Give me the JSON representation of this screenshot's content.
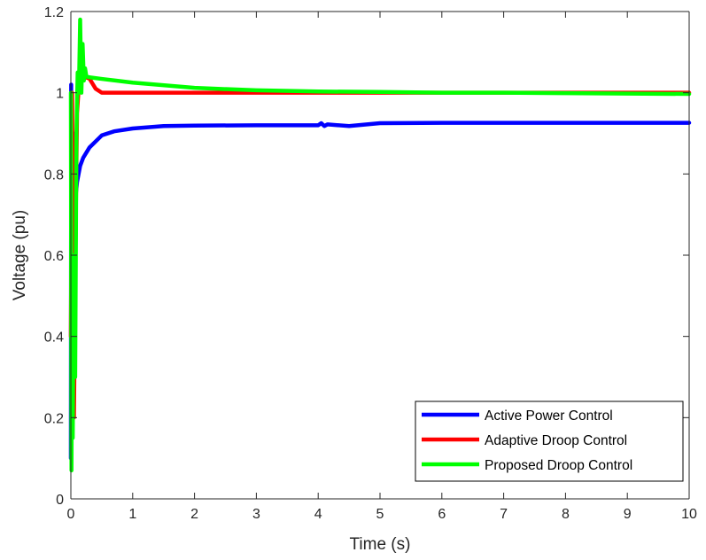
{
  "chart_data": {
    "type": "line",
    "title": "",
    "xlabel": "Time (s)",
    "ylabel": "Voltage (pu)",
    "xlim": [
      0,
      10
    ],
    "ylim": [
      0,
      1.2
    ],
    "xticks": [
      0,
      1,
      2,
      3,
      4,
      5,
      6,
      7,
      8,
      9,
      10
    ],
    "yticks": [
      0,
      0.2,
      0.4,
      0.6,
      0.8,
      1,
      1.2
    ],
    "xtick_labels": [
      "0",
      "1",
      "2",
      "3",
      "4",
      "5",
      "6",
      "7",
      "8",
      "9",
      "10"
    ],
    "ytick_labels": [
      "0",
      "0.2",
      "0.4",
      "0.6",
      "0.8",
      "1",
      "1.2"
    ],
    "grid": false,
    "legend_position": "bottom-right",
    "series": [
      {
        "name": "Active Power Control",
        "color": "#0000ff",
        "x": [
          0,
          0.005,
          0.01,
          0.015,
          0.02,
          0.03,
          0.04,
          0.05,
          0.06,
          0.07,
          0.08,
          0.1,
          0.15,
          0.2,
          0.3,
          0.4,
          0.5,
          0.7,
          1.0,
          1.5,
          2.0,
          3.0,
          4.0,
          4.05,
          4.1,
          4.15,
          4.5,
          5.0,
          6.0,
          7.0,
          8.0,
          9.0,
          10.0
        ],
        "y": [
          0.1,
          1.02,
          0.25,
          0.95,
          0.3,
          0.6,
          0.9,
          0.5,
          0.7,
          0.6,
          0.75,
          0.78,
          0.82,
          0.84,
          0.865,
          0.88,
          0.895,
          0.905,
          0.912,
          0.918,
          0.919,
          0.92,
          0.92,
          0.925,
          0.918,
          0.922,
          0.918,
          0.925,
          0.926,
          0.926,
          0.926,
          0.926,
          0.926
        ]
      },
      {
        "name": "Adaptive Droop Control",
        "color": "#ff0000",
        "x": [
          0,
          0.02,
          0.05,
          0.08,
          0.1,
          0.13,
          0.16,
          0.2,
          0.3,
          0.4,
          0.5,
          0.6,
          1.0,
          2.0,
          3.0,
          4.0,
          5.0,
          6.0,
          7.0,
          8.0,
          9.0,
          10.0
        ],
        "y": [
          0.4,
          1.0,
          0.2,
          0.7,
          0.95,
          1.02,
          1.05,
          1.04,
          1.035,
          1.01,
          1.0,
          1.0,
          1.0,
          1.0,
          1.0,
          1.0,
          1.0,
          1.0,
          1.0,
          1.0,
          1.0,
          1.0
        ]
      },
      {
        "name": "Proposed Droop Control",
        "color": "#00ff00",
        "x": [
          0,
          0.01,
          0.02,
          0.03,
          0.05,
          0.07,
          0.09,
          0.11,
          0.13,
          0.15,
          0.17,
          0.19,
          0.21,
          0.23,
          0.25,
          0.3,
          0.5,
          1.0,
          2.0,
          3.0,
          4.0,
          5.0,
          6.0,
          7.0,
          8.0,
          9.0,
          10.0
        ],
        "y": [
          1.0,
          0.07,
          0.5,
          0.15,
          0.6,
          0.3,
          0.9,
          1.05,
          1.0,
          1.18,
          1.0,
          1.12,
          1.03,
          1.06,
          1.04,
          1.038,
          1.034,
          1.025,
          1.012,
          1.006,
          1.003,
          1.002,
          1.0,
          1.0,
          0.999,
          0.998,
          0.997
        ]
      }
    ]
  }
}
